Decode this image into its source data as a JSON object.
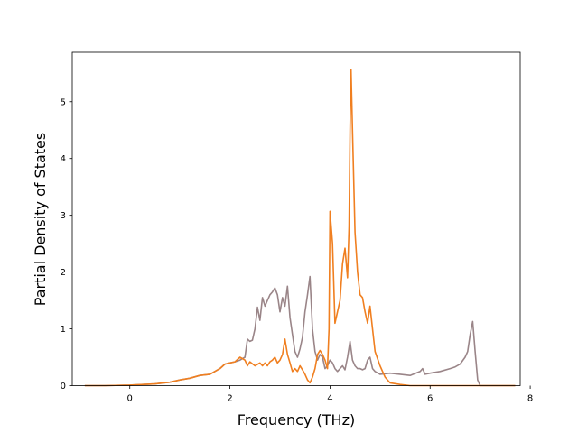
{
  "chart_data": {
    "type": "line",
    "xlabel": "Frequency (THz)",
    "ylabel": "Partial Density of States",
    "xlim": [
      -1.15,
      7.8
    ],
    "ylim": [
      0,
      5.87
    ],
    "xticks": [
      0,
      2,
      4,
      6,
      8
    ],
    "yticks": [
      0,
      1,
      2,
      3,
      4,
      5
    ],
    "grid": false,
    "legend": "none",
    "series": [
      {
        "color": "#9a8588",
        "x": [
          -0.9,
          -0.5,
          0.0,
          0.5,
          0.8,
          1.0,
          1.2,
          1.4,
          1.6,
          1.8,
          1.9,
          2.0,
          2.1,
          2.2,
          2.3,
          2.35,
          2.4,
          2.45,
          2.5,
          2.55,
          2.6,
          2.65,
          2.7,
          2.75,
          2.8,
          2.85,
          2.9,
          2.95,
          3.0,
          3.05,
          3.1,
          3.15,
          3.2,
          3.25,
          3.3,
          3.35,
          3.4,
          3.45,
          3.5,
          3.55,
          3.6,
          3.65,
          3.7,
          3.75,
          3.8,
          3.85,
          3.9,
          3.95,
          4.0,
          4.05,
          4.1,
          4.15,
          4.2,
          4.25,
          4.3,
          4.35,
          4.4,
          4.45,
          4.5,
          4.55,
          4.6,
          4.65,
          4.7,
          4.75,
          4.8,
          4.85,
          4.9,
          5.0,
          5.2,
          5.4,
          5.6,
          5.8,
          5.85,
          5.9,
          6.0,
          6.2,
          6.4,
          6.5,
          6.6,
          6.7,
          6.75,
          6.8,
          6.85,
          6.9,
          6.95,
          7.0,
          7.2,
          7.7
        ],
        "values": [
          0.0,
          0.0,
          0.01,
          0.03,
          0.06,
          0.1,
          0.13,
          0.18,
          0.2,
          0.3,
          0.38,
          0.4,
          0.42,
          0.45,
          0.5,
          0.82,
          0.78,
          0.8,
          1.0,
          1.38,
          1.15,
          1.55,
          1.4,
          1.5,
          1.6,
          1.65,
          1.72,
          1.6,
          1.3,
          1.55,
          1.4,
          1.75,
          1.2,
          0.9,
          0.6,
          0.5,
          0.65,
          0.85,
          1.3,
          1.6,
          1.92,
          1.0,
          0.6,
          0.45,
          0.55,
          0.5,
          0.3,
          0.35,
          0.45,
          0.4,
          0.3,
          0.25,
          0.3,
          0.35,
          0.28,
          0.5,
          0.78,
          0.45,
          0.35,
          0.3,
          0.3,
          0.28,
          0.3,
          0.45,
          0.5,
          0.3,
          0.25,
          0.2,
          0.22,
          0.2,
          0.18,
          0.25,
          0.3,
          0.2,
          0.22,
          0.25,
          0.3,
          0.33,
          0.38,
          0.5,
          0.6,
          0.9,
          1.13,
          0.6,
          0.1,
          0.0,
          0.0,
          0.0
        ]
      },
      {
        "color": "#f07f20",
        "x": [
          -0.9,
          -0.5,
          0.0,
          0.5,
          0.8,
          1.0,
          1.2,
          1.4,
          1.6,
          1.8,
          1.9,
          2.0,
          2.1,
          2.2,
          2.3,
          2.35,
          2.4,
          2.5,
          2.6,
          2.65,
          2.7,
          2.75,
          2.8,
          2.85,
          2.9,
          2.95,
          3.0,
          3.05,
          3.1,
          3.15,
          3.2,
          3.25,
          3.3,
          3.35,
          3.4,
          3.45,
          3.5,
          3.55,
          3.6,
          3.65,
          3.7,
          3.75,
          3.8,
          3.85,
          3.9,
          3.95,
          3.98,
          4.0,
          4.05,
          4.1,
          4.15,
          4.2,
          4.25,
          4.3,
          4.35,
          4.38,
          4.4,
          4.42,
          4.45,
          4.5,
          4.55,
          4.6,
          4.65,
          4.7,
          4.75,
          4.8,
          4.85,
          4.9,
          5.0,
          5.1,
          5.2,
          5.4,
          5.6,
          6.0,
          6.5,
          6.8,
          7.0,
          7.7
        ],
        "values": [
          0.0,
          0.0,
          0.01,
          0.03,
          0.06,
          0.1,
          0.13,
          0.18,
          0.2,
          0.3,
          0.38,
          0.4,
          0.42,
          0.5,
          0.45,
          0.35,
          0.42,
          0.35,
          0.4,
          0.35,
          0.4,
          0.35,
          0.42,
          0.45,
          0.5,
          0.4,
          0.45,
          0.55,
          0.82,
          0.55,
          0.4,
          0.25,
          0.3,
          0.25,
          0.35,
          0.28,
          0.2,
          0.1,
          0.05,
          0.15,
          0.3,
          0.55,
          0.62,
          0.55,
          0.45,
          0.3,
          1.0,
          3.07,
          2.5,
          1.1,
          1.3,
          1.5,
          2.15,
          2.42,
          1.9,
          2.8,
          4.5,
          5.57,
          4.5,
          2.7,
          2.0,
          1.6,
          1.55,
          1.3,
          1.1,
          1.4,
          1.0,
          0.6,
          0.35,
          0.15,
          0.05,
          0.02,
          0.0,
          0.0,
          0.0,
          0.0,
          0.0,
          0.0
        ]
      }
    ]
  }
}
